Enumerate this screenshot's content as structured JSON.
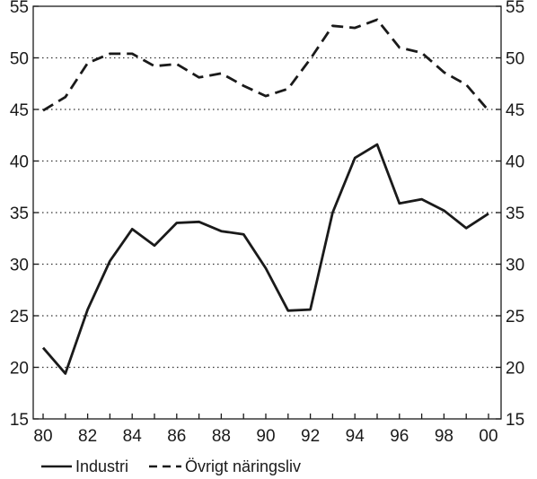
{
  "chart_data": {
    "type": "line",
    "x": [
      "80",
      "81",
      "82",
      "83",
      "84",
      "85",
      "86",
      "87",
      "88",
      "89",
      "90",
      "91",
      "92",
      "93",
      "94",
      "95",
      "96",
      "97",
      "98",
      "99",
      "00"
    ],
    "x_tick_labels": [
      "80",
      "82",
      "84",
      "86",
      "88",
      "90",
      "92",
      "94",
      "96",
      "98",
      "00"
    ],
    "y_tick_labels": [
      "15",
      "20",
      "25",
      "30",
      "35",
      "40",
      "45",
      "50",
      "55"
    ],
    "ylim": [
      15,
      55
    ],
    "y_ticks": [
      15,
      20,
      25,
      30,
      35,
      40,
      45,
      50,
      55
    ],
    "grid": true,
    "grid_style": "dotted horizontal",
    "dual_y_axis_mirrored": true,
    "legend_position": "bottom",
    "series": [
      {
        "name": "Industri",
        "style": "solid",
        "color": "#1a1a1a",
        "values": [
          21.9,
          19.4,
          25.6,
          30.3,
          33.4,
          31.8,
          34.0,
          34.1,
          33.2,
          32.9,
          29.6,
          25.5,
          25.6,
          35.0,
          40.3,
          41.6,
          35.9,
          36.3,
          35.2,
          33.5,
          34.9
        ]
      },
      {
        "name": "Övrigt näringsliv",
        "style": "dashed",
        "color": "#1a1a1a",
        "values": [
          44.9,
          46.2,
          49.5,
          50.4,
          50.4,
          49.2,
          49.4,
          48.1,
          48.5,
          47.3,
          46.3,
          47.0,
          49.9,
          53.1,
          52.9,
          53.7,
          51.0,
          50.5,
          48.6,
          47.4,
          44.9
        ]
      }
    ]
  }
}
